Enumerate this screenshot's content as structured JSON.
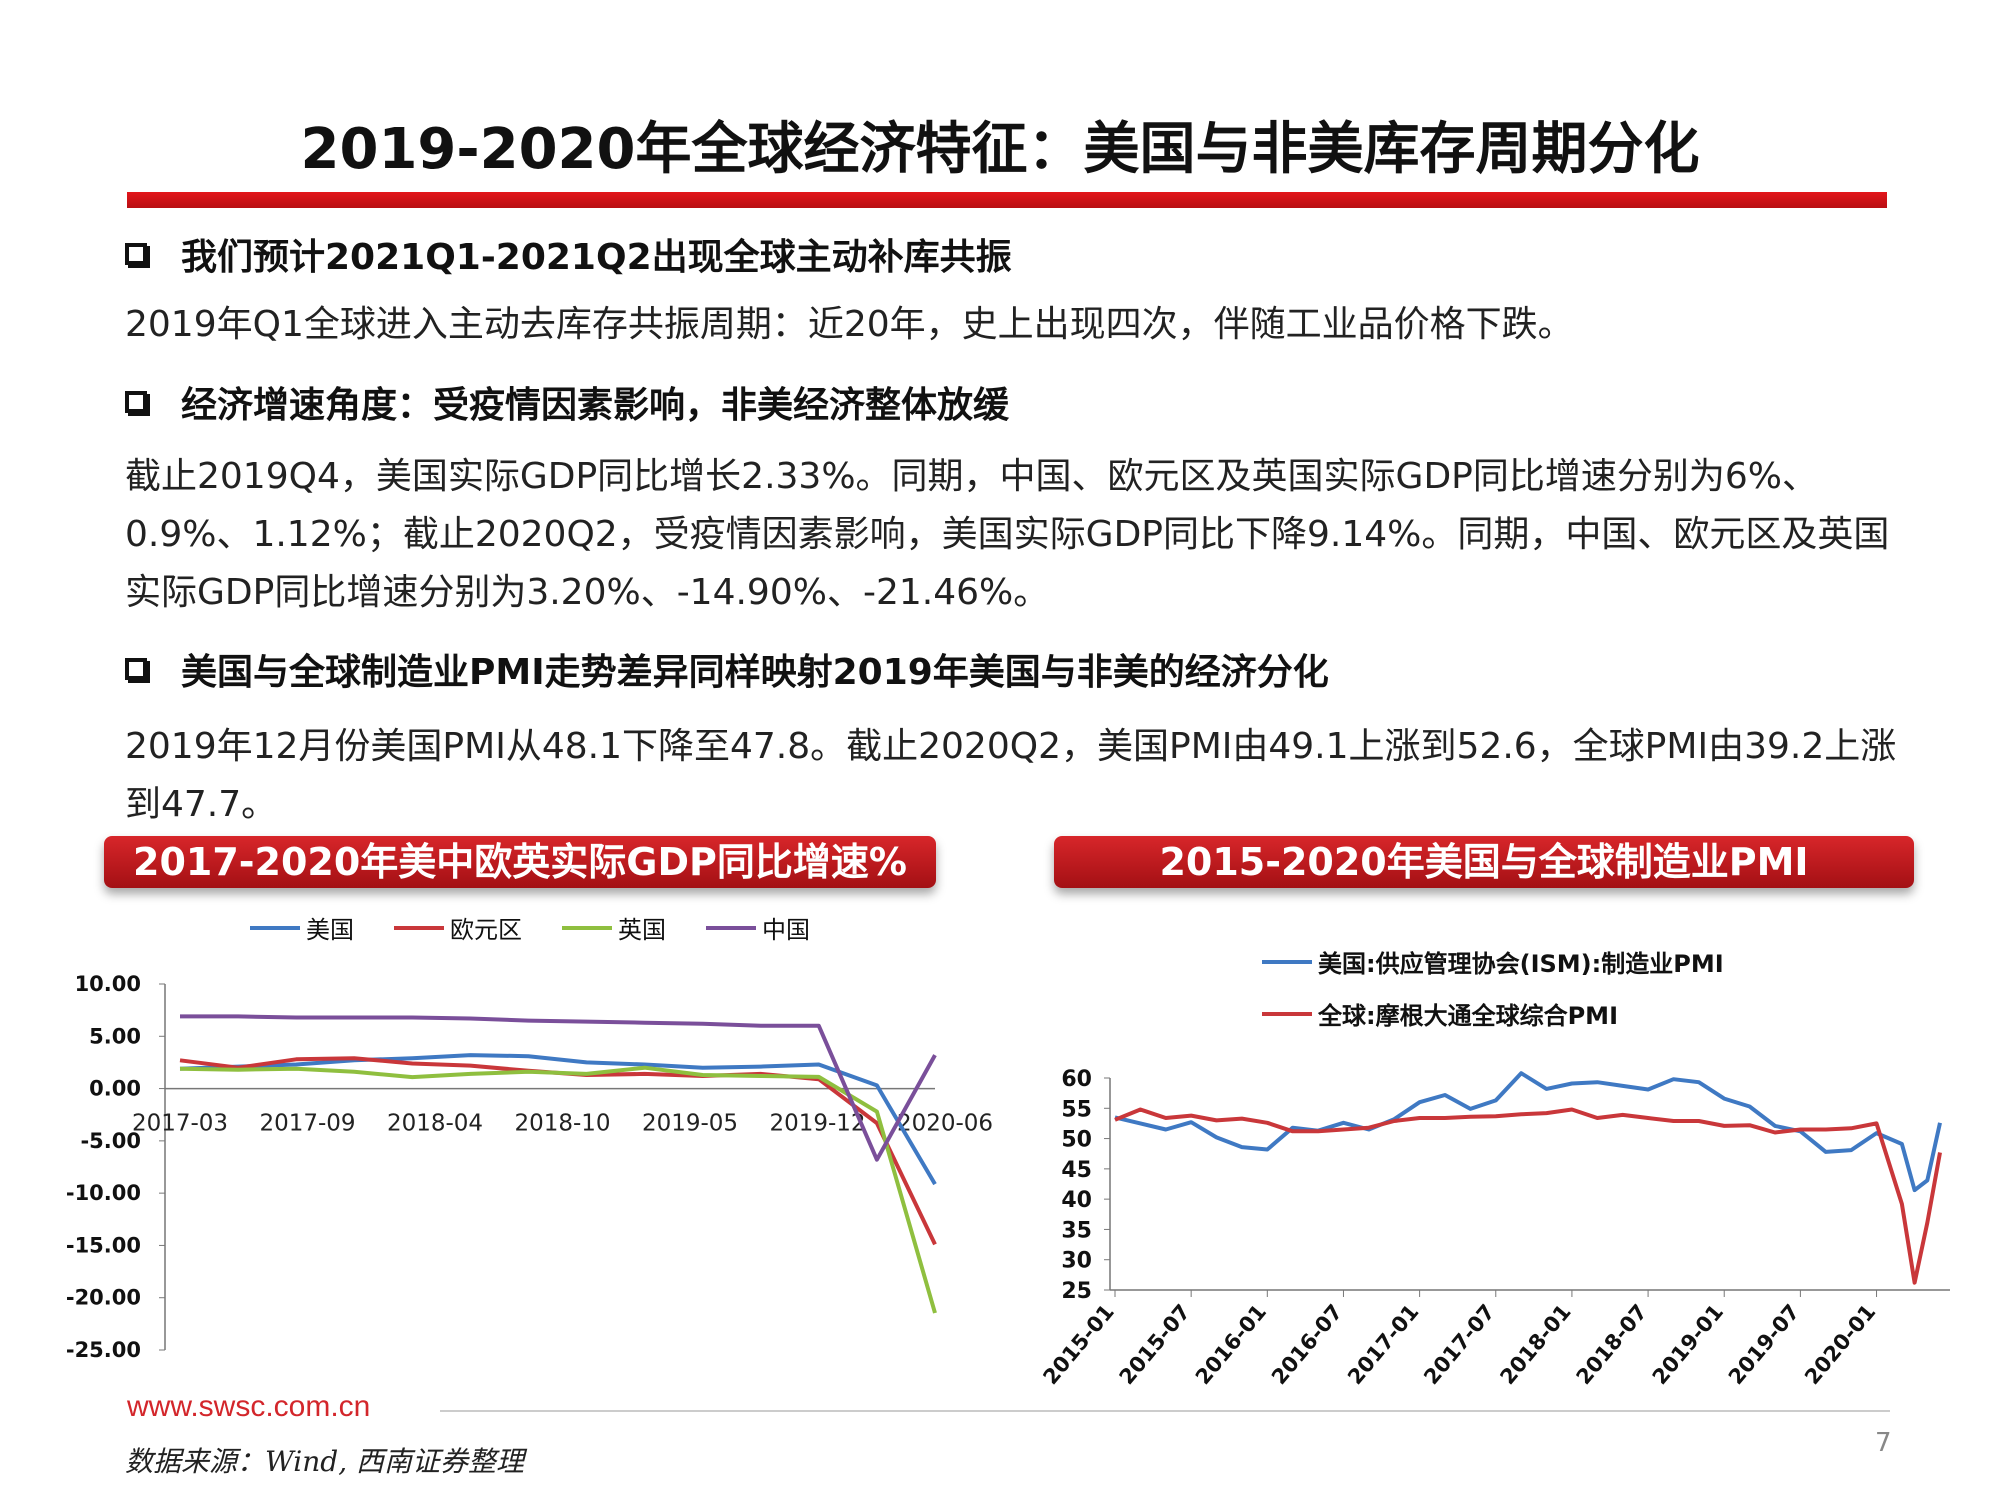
{
  "slide": {
    "title": "2019-2020年全球经济特征：美国与非美库存周期分化",
    "bullets": [
      {
        "heading": "我们预计2021Q1-2021Q2出现全球主动补库共振",
        "text": "2019年Q1全球进入主动去库存共振周期：近20年，史上出现四次，伴随工业品价格下跌。"
      },
      {
        "heading": "经济增速角度：受疫情因素影响，非美经济整体放缓",
        "text": "截止2019Q4，美国实际GDP同比增长2.33%。同期，中国、欧元区及英国实际GDP同比增速分别为6%、0.9%、1.12%；截止2020Q2，受疫情因素影响，美国实际GDP同比下降9.14%。同期，中国、欧元区及英国实际GDP同比增速分别为3.20%、-14.90%、-21.46%。"
      },
      {
        "heading": "美国与全球制造业PMI走势差异同样映射2019年美国与非美的经济分化",
        "text": "2019年12月份美国PMI从48.1下降至47.8。截止2020Q2，美国PMI由49.1上涨到52.6，全球PMI由39.2上涨到47.7。"
      }
    ],
    "footer_url": "www.swsc.com.cn",
    "source": "数据来源：Wind, 西南证券整理",
    "page_number": "7"
  },
  "chart_data": [
    {
      "type": "line",
      "title": "2017-2020年美中欧英实际GDP同比增速%",
      "x_labels": [
        "2017-03",
        "2017-09",
        "2018-04",
        "2018-10",
        "2019-05",
        "2019-12",
        "2020-06"
      ],
      "x": [
        "2017-03",
        "2017-06",
        "2017-09",
        "2017-12",
        "2018-03",
        "2018-06",
        "2018-09",
        "2018-12",
        "2019-03",
        "2019-06",
        "2019-09",
        "2019-12",
        "2020-03",
        "2020-06"
      ],
      "y_ticks": [
        "10.00",
        "5.00",
        "0.00",
        "-5.00",
        "-10.00",
        "-15.00",
        "-20.00",
        "-25.00"
      ],
      "ylim": [
        -25,
        10
      ],
      "legend_position": "top",
      "series": [
        {
          "name": "美国",
          "color": "#3f79c3",
          "values": [
            1.9,
            2.1,
            2.3,
            2.7,
            2.9,
            3.2,
            3.1,
            2.5,
            2.3,
            2.0,
            2.1,
            2.3,
            0.3,
            -9.14
          ]
        },
        {
          "name": "欧元区",
          "color": "#c9373a",
          "values": [
            2.7,
            2.0,
            2.8,
            2.9,
            2.4,
            2.2,
            1.7,
            1.3,
            1.4,
            1.2,
            1.4,
            0.9,
            -3.3,
            -14.9
          ]
        },
        {
          "name": "英国",
          "color": "#8fbf3f",
          "values": [
            1.9,
            1.8,
            1.9,
            1.6,
            1.1,
            1.4,
            1.6,
            1.4,
            2.0,
            1.3,
            1.2,
            1.12,
            -2.2,
            -21.46
          ]
        },
        {
          "name": "中国",
          "color": "#7a4f9a",
          "values": [
            6.9,
            6.9,
            6.8,
            6.8,
            6.8,
            6.7,
            6.5,
            6.4,
            6.3,
            6.2,
            6.0,
            6.0,
            -6.8,
            3.2
          ]
        }
      ]
    },
    {
      "type": "line",
      "title": "2015-2020年美国与全球制造业PMI",
      "x_labels": [
        "2015-01",
        "2015-07",
        "2016-01",
        "2016-07",
        "2017-01",
        "2017-07",
        "2018-01",
        "2018-07",
        "2019-01",
        "2019-07",
        "2020-01"
      ],
      "x": [
        "2015-01",
        "2015-03",
        "2015-05",
        "2015-07",
        "2015-09",
        "2015-11",
        "2016-01",
        "2016-03",
        "2016-05",
        "2016-07",
        "2016-09",
        "2016-11",
        "2017-01",
        "2017-03",
        "2017-05",
        "2017-07",
        "2017-09",
        "2017-11",
        "2018-01",
        "2018-03",
        "2018-05",
        "2018-07",
        "2018-09",
        "2018-11",
        "2019-01",
        "2019-03",
        "2019-05",
        "2019-07",
        "2019-09",
        "2019-11",
        "2020-01",
        "2020-03",
        "2020-04",
        "2020-05",
        "2020-06"
      ],
      "y_ticks": [
        "60",
        "55",
        "50",
        "45",
        "40",
        "35",
        "30",
        "25"
      ],
      "ylim": [
        25,
        60
      ],
      "legend_position": "top",
      "series": [
        {
          "name": "美国:供应管理协会(ISM):制造业PMI",
          "color": "#3f79c3",
          "values": [
            53.5,
            52.5,
            51.5,
            52.7,
            50.2,
            48.6,
            48.2,
            51.8,
            51.3,
            52.6,
            51.5,
            53.2,
            56.0,
            57.2,
            54.9,
            56.3,
            60.8,
            58.2,
            59.1,
            59.3,
            58.7,
            58.1,
            59.8,
            59.3,
            56.6,
            55.3,
            52.1,
            51.2,
            47.8,
            48.1,
            50.9,
            49.1,
            41.5,
            43.1,
            52.6
          ]
        },
        {
          "name": "全球:摩根大通全球综合PMI",
          "color": "#c9373a",
          "values": [
            53.1,
            54.8,
            53.4,
            53.8,
            53.0,
            53.3,
            52.6,
            51.2,
            51.2,
            51.5,
            51.8,
            52.9,
            53.4,
            53.4,
            53.6,
            53.7,
            54.0,
            54.2,
            54.8,
            53.4,
            53.9,
            53.4,
            52.9,
            52.9,
            52.1,
            52.2,
            51.0,
            51.5,
            51.5,
            51.7,
            52.5,
            39.2,
            26.2,
            36.1,
            47.7
          ]
        }
      ]
    }
  ]
}
